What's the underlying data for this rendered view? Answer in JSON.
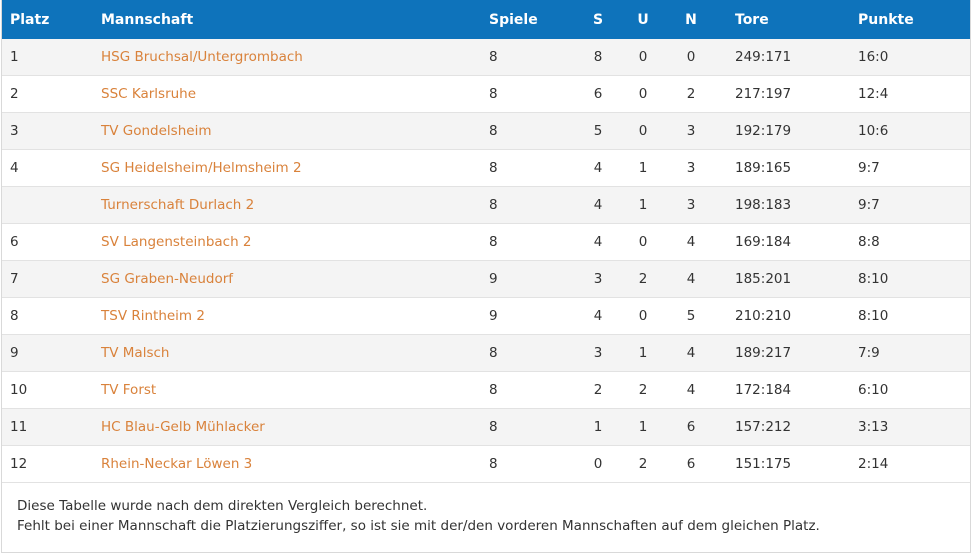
{
  "table": {
    "headers": {
      "platz": "Platz",
      "mannschaft": "Mannschaft",
      "spiele": "Spiele",
      "s": "S",
      "u": "U",
      "n": "N",
      "tore": "Tore",
      "punkte": "Punkte"
    },
    "rows": [
      {
        "platz": "1",
        "team": "HSG Bruchsal/Untergrombach",
        "spiele": "8",
        "s": "8",
        "u": "0",
        "n": "0",
        "tore": "249:171",
        "punkte": "16:0"
      },
      {
        "platz": "2",
        "team": "SSC Karlsruhe",
        "spiele": "8",
        "s": "6",
        "u": "0",
        "n": "2",
        "tore": "217:197",
        "punkte": "12:4"
      },
      {
        "platz": "3",
        "team": "TV Gondelsheim",
        "spiele": "8",
        "s": "5",
        "u": "0",
        "n": "3",
        "tore": "192:179",
        "punkte": "10:6"
      },
      {
        "platz": "4",
        "team": "SG Heidelsheim/Helmsheim 2",
        "spiele": "8",
        "s": "4",
        "u": "1",
        "n": "3",
        "tore": "189:165",
        "punkte": "9:7"
      },
      {
        "platz": "",
        "team": "Turnerschaft Durlach 2",
        "spiele": "8",
        "s": "4",
        "u": "1",
        "n": "3",
        "tore": "198:183",
        "punkte": "9:7"
      },
      {
        "platz": "6",
        "team": "SV Langensteinbach 2",
        "spiele": "8",
        "s": "4",
        "u": "0",
        "n": "4",
        "tore": "169:184",
        "punkte": "8:8"
      },
      {
        "platz": "7",
        "team": "SG Graben-Neudorf",
        "spiele": "9",
        "s": "3",
        "u": "2",
        "n": "4",
        "tore": "185:201",
        "punkte": "8:10"
      },
      {
        "platz": "8",
        "team": "TSV Rintheim 2",
        "spiele": "9",
        "s": "4",
        "u": "0",
        "n": "5",
        "tore": "210:210",
        "punkte": "8:10"
      },
      {
        "platz": "9",
        "team": "TV Malsch",
        "spiele": "8",
        "s": "3",
        "u": "1",
        "n": "4",
        "tore": "189:217",
        "punkte": "7:9"
      },
      {
        "platz": "10",
        "team": "TV Forst",
        "spiele": "8",
        "s": "2",
        "u": "2",
        "n": "4",
        "tore": "172:184",
        "punkte": "6:10"
      },
      {
        "platz": "11",
        "team": "HC Blau-Gelb Mühlacker",
        "spiele": "8",
        "s": "1",
        "u": "1",
        "n": "6",
        "tore": "157:212",
        "punkte": "3:13"
      },
      {
        "platz": "12",
        "team": "Rhein-Neckar Löwen 3",
        "spiele": "8",
        "s": "0",
        "u": "2",
        "n": "6",
        "tore": "151:175",
        "punkte": "2:14"
      }
    ]
  },
  "notes": {
    "line1": "Diese Tabelle wurde nach dem direkten Vergleich berechnet.",
    "line2": "Fehlt bei einer Mannschaft die Platzierungsziffer, so ist sie mit der/den vorderen Mannschaften auf dem gleichen Platz."
  },
  "colors": {
    "header_bg": "#0e73bb",
    "header_text": "#ffffff",
    "team_link": "#d9823b",
    "row_alt_bg": "#f4f4f4"
  }
}
